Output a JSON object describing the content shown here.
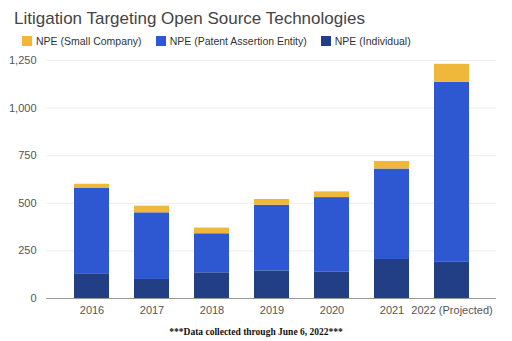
{
  "chart_data": {
    "type": "bar",
    "stacked": true,
    "title": "Litigation Targeting Open Source Technologies",
    "caption": "***Data collected through June 6, 2022***",
    "categories": [
      "2016",
      "2017",
      "2018",
      "2019",
      "2020",
      "2021",
      "2022 (Projected)"
    ],
    "series": [
      {
        "name": "NPE (Small Company)",
        "color": "#efb83a",
        "values": [
          20,
          35,
          30,
          30,
          30,
          40,
          95
        ]
      },
      {
        "name": "NPE (Patent Assertion Entity)",
        "color": "#2e58d2",
        "values": [
          450,
          350,
          205,
          345,
          390,
          475,
          945
        ]
      },
      {
        "name": "NPE (Individual)",
        "color": "#223f85",
        "values": [
          130,
          100,
          135,
          145,
          140,
          205,
          190
        ]
      }
    ],
    "ylim": [
      0,
      1250
    ],
    "yticks": [
      0,
      250,
      500,
      750,
      1000,
      1250
    ],
    "grid": true,
    "legend": "top"
  }
}
